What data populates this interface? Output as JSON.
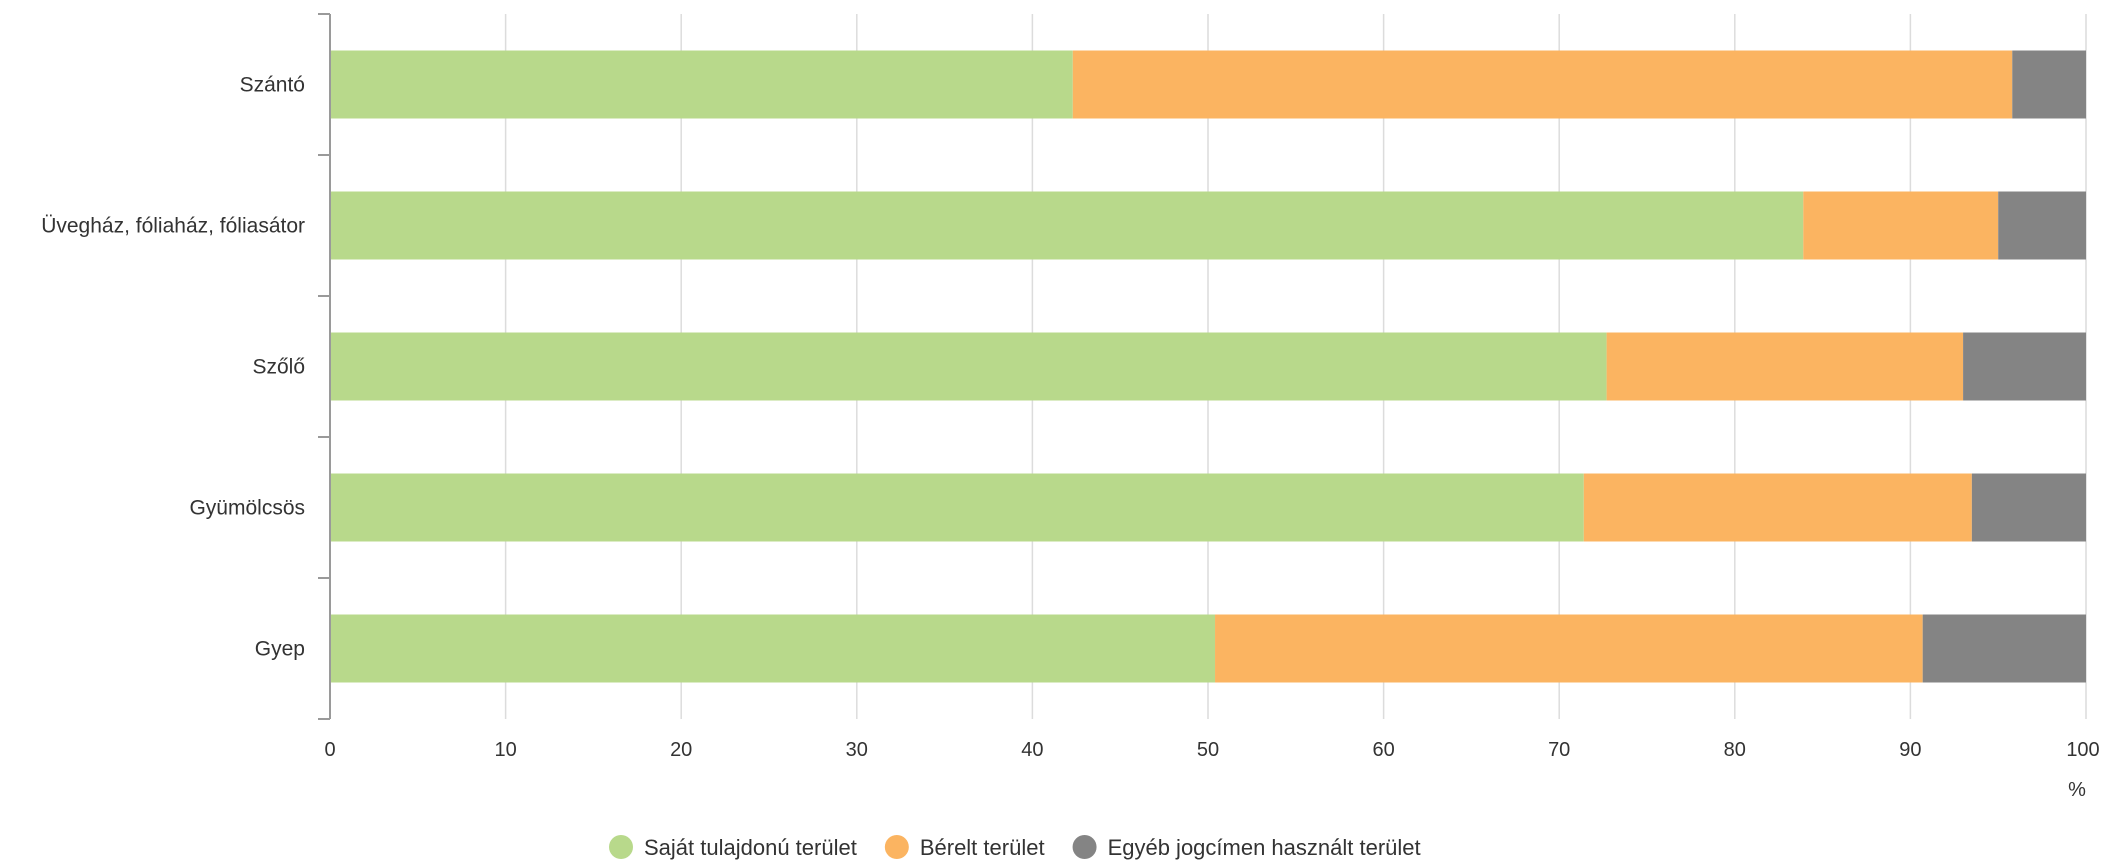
{
  "chart_data": {
    "type": "bar",
    "orientation": "horizontal",
    "stacked": true,
    "categories": [
      "Szántó",
      "Üvegház, fóliaház, fóliasátor",
      "Szőlő",
      "Gyümölcsös",
      "Gyep"
    ],
    "series": [
      {
        "name": "Saját tulajdonú terület",
        "color": "#b8d98b",
        "values": [
          42.3,
          83.9,
          72.7,
          71.4,
          50.4
        ]
      },
      {
        "name": "Bérelt terület",
        "color": "#fbb461",
        "values": [
          53.5,
          11.1,
          20.3,
          22.1,
          40.3
        ]
      },
      {
        "name": "Egyéb jogcímen használt terület",
        "color": "#848484",
        "values": [
          4.2,
          5.0,
          7.0,
          6.5,
          9.3
        ]
      }
    ],
    "xlim": [
      0,
      100
    ],
    "xticks": [
      0,
      10,
      20,
      30,
      40,
      50,
      60,
      70,
      80,
      90,
      100
    ],
    "xunit": "%",
    "grid": true,
    "legend_position": "bottom"
  }
}
